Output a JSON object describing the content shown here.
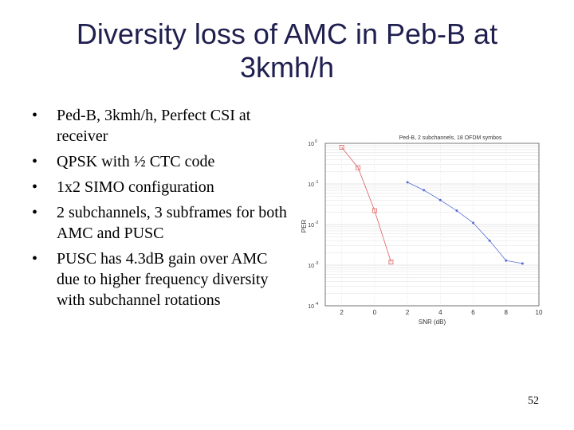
{
  "slide": {
    "title_line1": "Diversity loss of AMC in Peb-B at",
    "title_line2": "3kmh/h",
    "bullet_symbol": "•",
    "bullets": [
      "Ped-B, 3kmh/h, Perfect CSI at receiver",
      "QPSK with ½ CTC code",
      "1x2 SIMO configuration",
      "2 subchannels, 3 subframes for both AMC and PUSC",
      "PUSC has 4.3dB gain over AMC due to higher frequency diversity with subchannel rotations"
    ],
    "page_number": "52"
  },
  "chart_data": {
    "type": "line",
    "title": "Ped-B, 2 subchannels, 18 OFDM symbos",
    "xlabel": "SNR (dB)",
    "ylabel": "PER",
    "y_scale": "log",
    "ylim": [
      0.0001,
      1
    ],
    "x_tick_labels": [
      "2",
      "0",
      "2",
      "4",
      "6",
      "8",
      "10"
    ],
    "y_ticks": [
      {
        "base": "10",
        "exp": "0"
      },
      {
        "base": "10",
        "exp": "-1"
      },
      {
        "base": "10",
        "exp": "-2"
      },
      {
        "base": "10",
        "exp": "-3"
      },
      {
        "base": "10",
        "exp": "-4"
      }
    ],
    "grid": true,
    "series": [
      {
        "color": "#e06060",
        "marker": "square",
        "x": [
          -2,
          -1,
          0,
          1
        ],
        "y": [
          0.8,
          0.25,
          0.022,
          0.0012
        ]
      },
      {
        "color": "#5a6fd6",
        "marker": "point",
        "x": [
          2,
          3,
          4,
          5,
          6,
          7,
          8,
          9
        ],
        "y": [
          0.11,
          0.07,
          0.04,
          0.022,
          0.011,
          0.004,
          0.0013,
          0.0011
        ]
      }
    ]
  }
}
